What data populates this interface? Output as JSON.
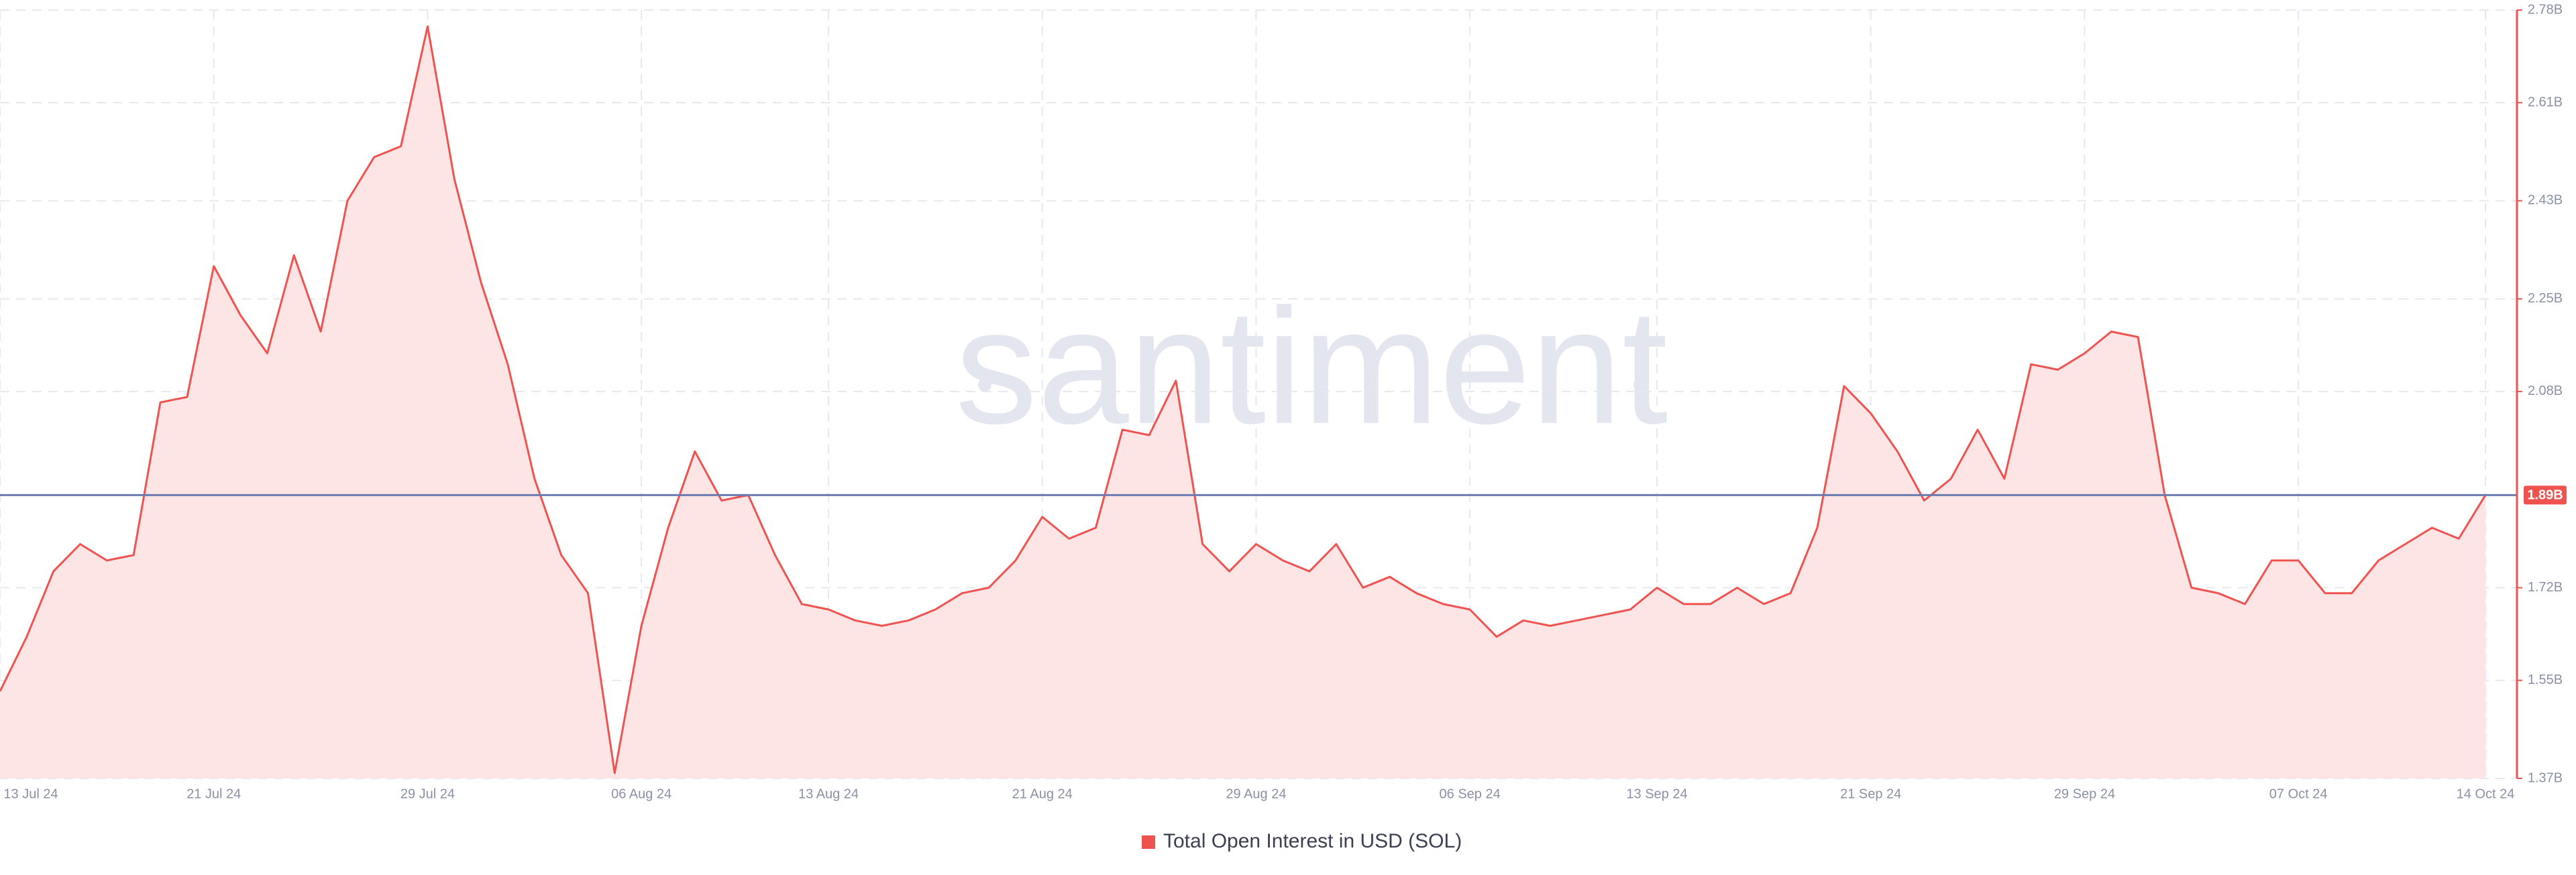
{
  "chart_data": {
    "type": "area",
    "watermark": "santiment",
    "x": [
      "2024-07-13",
      "2024-07-14",
      "2024-07-15",
      "2024-07-16",
      "2024-07-17",
      "2024-07-18",
      "2024-07-19",
      "2024-07-20",
      "2024-07-21",
      "2024-07-22",
      "2024-07-23",
      "2024-07-24",
      "2024-07-25",
      "2024-07-26",
      "2024-07-27",
      "2024-07-28",
      "2024-07-29",
      "2024-07-30",
      "2024-07-31",
      "2024-08-01",
      "2024-08-02",
      "2024-08-03",
      "2024-08-04",
      "2024-08-05",
      "2024-08-06",
      "2024-08-07",
      "2024-08-08",
      "2024-08-09",
      "2024-08-10",
      "2024-08-11",
      "2024-08-12",
      "2024-08-13",
      "2024-08-14",
      "2024-08-15",
      "2024-08-16",
      "2024-08-17",
      "2024-08-18",
      "2024-08-19",
      "2024-08-20",
      "2024-08-21",
      "2024-08-22",
      "2024-08-23",
      "2024-08-24",
      "2024-08-25",
      "2024-08-26",
      "2024-08-27",
      "2024-08-28",
      "2024-08-29",
      "2024-08-30",
      "2024-08-31",
      "2024-09-01",
      "2024-09-02",
      "2024-09-03",
      "2024-09-04",
      "2024-09-05",
      "2024-09-06",
      "2024-09-07",
      "2024-09-08",
      "2024-09-09",
      "2024-09-10",
      "2024-09-11",
      "2024-09-12",
      "2024-09-13",
      "2024-09-14",
      "2024-09-15",
      "2024-09-16",
      "2024-09-17",
      "2024-09-18",
      "2024-09-19",
      "2024-09-20",
      "2024-09-21",
      "2024-09-22",
      "2024-09-23",
      "2024-09-24",
      "2024-09-25",
      "2024-09-26",
      "2024-09-27",
      "2024-09-28",
      "2024-09-29",
      "2024-09-30",
      "2024-10-01",
      "2024-10-02",
      "2024-10-03",
      "2024-10-04",
      "2024-10-05",
      "2024-10-06",
      "2024-10-07",
      "2024-10-08",
      "2024-10-09",
      "2024-10-10",
      "2024-10-11",
      "2024-10-12",
      "2024-10-13",
      "2024-10-14"
    ],
    "series": [
      {
        "name": "Total Open Interest in USD (SOL)",
        "color": "#ef5350",
        "values": [
          1.53,
          1.63,
          1.75,
          1.8,
          1.77,
          1.78,
          2.06,
          2.07,
          2.31,
          2.22,
          2.15,
          2.33,
          2.19,
          2.43,
          2.51,
          2.53,
          2.75,
          2.47,
          2.28,
          2.13,
          1.92,
          1.78,
          1.71,
          1.38,
          1.65,
          1.83,
          1.97,
          1.88,
          1.89,
          1.78,
          1.69,
          1.68,
          1.66,
          1.65,
          1.66,
          1.68,
          1.71,
          1.72,
          1.77,
          1.85,
          1.81,
          1.83,
          2.01,
          2.0,
          2.1,
          1.8,
          1.75,
          1.8,
          1.77,
          1.75,
          1.8,
          1.72,
          1.74,
          1.71,
          1.69,
          1.68,
          1.63,
          1.66,
          1.65,
          1.66,
          1.67,
          1.68,
          1.72,
          1.69,
          1.69,
          1.72,
          1.69,
          1.71,
          1.83,
          2.09,
          2.04,
          1.97,
          1.88,
          1.92,
          2.01,
          1.92,
          2.13,
          2.12,
          2.15,
          2.19,
          2.18,
          1.89,
          1.72,
          1.71,
          1.69,
          1.77,
          1.77,
          1.71,
          1.71,
          1.77,
          1.8,
          1.83,
          1.81,
          1.89
        ]
      }
    ],
    "xlim": [
      "2024-07-13",
      "2024-10-14"
    ],
    "xticks": [
      {
        "value": "2024-07-13",
        "label": "13 Jul 24"
      },
      {
        "value": "2024-07-21",
        "label": "21 Jul 24"
      },
      {
        "value": "2024-07-29",
        "label": "29 Jul 24"
      },
      {
        "value": "2024-08-06",
        "label": "06 Aug 24"
      },
      {
        "value": "2024-08-13",
        "label": "13 Aug 24"
      },
      {
        "value": "2024-08-21",
        "label": "21 Aug 24"
      },
      {
        "value": "2024-08-29",
        "label": "29 Aug 24"
      },
      {
        "value": "2024-09-06",
        "label": "06 Sep 24"
      },
      {
        "value": "2024-09-13",
        "label": "13 Sep 24"
      },
      {
        "value": "2024-09-21",
        "label": "21 Sep 24"
      },
      {
        "value": "2024-09-29",
        "label": "29 Sep 24"
      },
      {
        "value": "2024-10-07",
        "label": "07 Oct 24"
      },
      {
        "value": "2024-10-14",
        "label": "14 Oct 24"
      }
    ],
    "ylim": [
      1.37,
      2.78
    ],
    "yticks": [
      {
        "value": 1.37,
        "label": "1.37B"
      },
      {
        "value": 1.55,
        "label": "1.55B"
      },
      {
        "value": 1.72,
        "label": "1.72B"
      },
      {
        "value": 2.08,
        "label": "2.08B"
      },
      {
        "value": 2.25,
        "label": "2.25B"
      },
      {
        "value": 2.43,
        "label": "2.43B"
      },
      {
        "value": 2.61,
        "label": "2.61B"
      },
      {
        "value": 2.78,
        "label": "2.78B"
      }
    ],
    "reference_line": {
      "value": 1.89,
      "label": "1.89B",
      "color": "#6b7bb0"
    },
    "axis_color": "#ef5350",
    "fill_color": "#fde5e5",
    "grid": true,
    "legend": "bottom"
  }
}
